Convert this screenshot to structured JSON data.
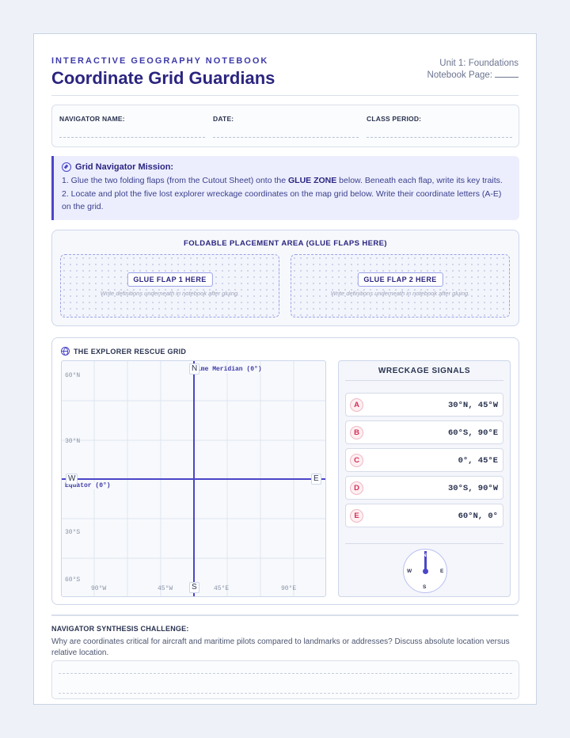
{
  "header": {
    "kicker": "INTERACTIVE GEOGRAPHY NOTEBOOK",
    "title": "Coordinate Grid Guardians",
    "unit": "Unit 1: Foundations",
    "page_label": "Notebook Page:"
  },
  "info_fields": {
    "name": "NAVIGATOR NAME:",
    "date": "DATE:",
    "period": "CLASS PERIOD:"
  },
  "mission": {
    "heading": "Grid Navigator Mission:",
    "step1_a": "1. Glue the two folding flaps (from the Cutout Sheet) onto the ",
    "step1_bold": "GLUE ZONE",
    "step1_b": " below. Beneath each flap, write its key traits.",
    "step2": "2. Locate and plot the five lost explorer wreckage coordinates on the map grid below. Write their coordinate letters (A-E) on the grid."
  },
  "foldable": {
    "heading": "FOLDABLE PLACEMENT AREA (GLUE FLAPS HERE)",
    "flap1": "GLUE FLAP 1 HERE",
    "flap2": "GLUE FLAP 2 HERE",
    "note": "Write definitions underneath in notebook after gluing."
  },
  "grid": {
    "heading": "THE EXPLORER RESCUE GRID",
    "lat_labels": [
      "60°N",
      "30°N",
      "30°S",
      "60°S"
    ],
    "lon_labels": [
      "90°W",
      "45°W",
      "45°E",
      "90°E"
    ],
    "prime_meridian": "ime Meridian (0°)",
    "equator": "Equator (0°)",
    "north": "N",
    "south": "S",
    "west": "W",
    "east": "E"
  },
  "signals": {
    "heading": "WRECKAGE SIGNALS",
    "items": [
      {
        "letter": "A",
        "coord": "30°N, 45°W"
      },
      {
        "letter": "B",
        "coord": "60°S, 90°E"
      },
      {
        "letter": "C",
        "coord": "0°, 45°E"
      },
      {
        "letter": "D",
        "coord": "30°S, 90°W"
      },
      {
        "letter": "E",
        "coord": "60°N, 0°"
      }
    ],
    "rose": {
      "n": "N",
      "s": "S",
      "w": "W",
      "e": "E"
    }
  },
  "synthesis": {
    "heading": "NAVIGATOR SYNTHESIS CHALLENGE:",
    "question": "Why are coordinates critical for aircraft and maritime pilots compared to landmarks or addresses? Discuss absolute location versus relative location."
  },
  "colors": {
    "accent": "#4b46c9",
    "title": "#2b2580",
    "signal_letter": "#d62e55"
  }
}
